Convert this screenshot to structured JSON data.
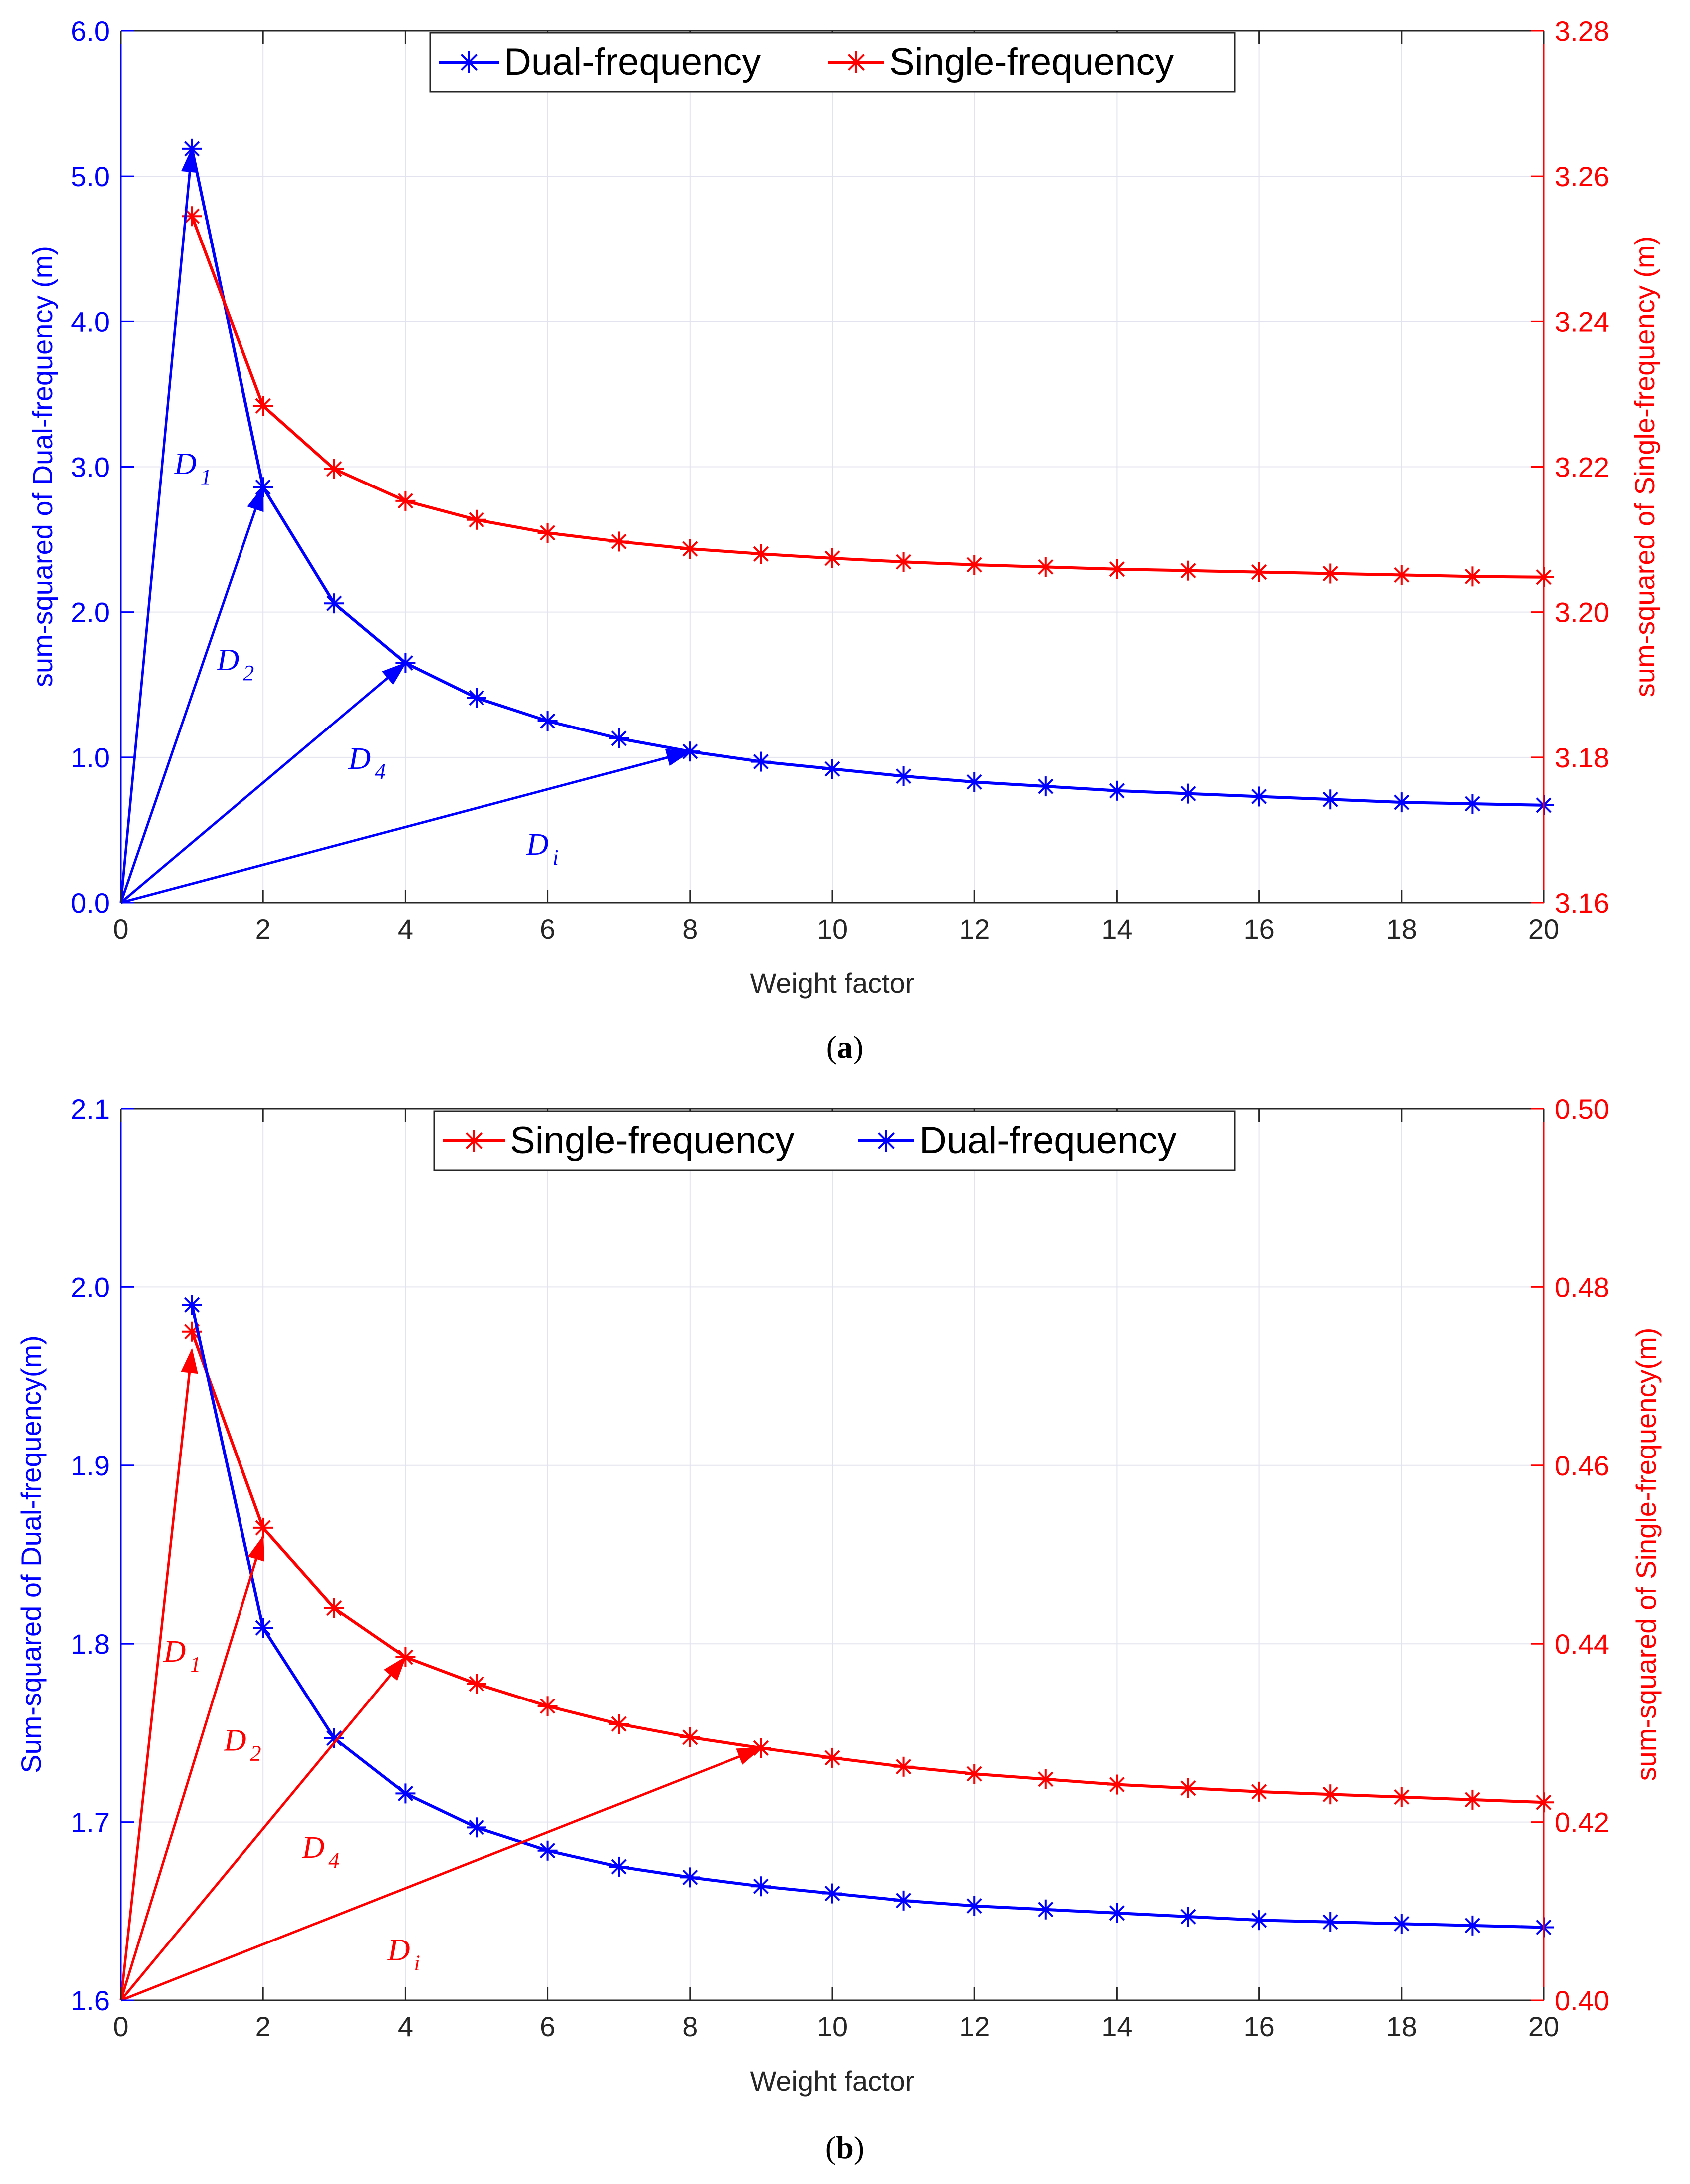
{
  "chart_data": [
    {
      "type": "line",
      "caption": "a",
      "xlabel": "Weight factor",
      "xlim": [
        0,
        20
      ],
      "xticks": [
        0,
        2,
        4,
        6,
        8,
        10,
        12,
        14,
        16,
        18,
        20
      ],
      "xtick_labels": [
        "0",
        "2",
        "4",
        "6",
        "8",
        "10",
        "12",
        "14",
        "16",
        "18",
        "20"
      ],
      "left_axis": {
        "label": "sum-squared of Dual-frequency (m)",
        "color": "#0000ff",
        "ylim": [
          0,
          6
        ],
        "ticks": [
          0,
          1,
          2,
          3,
          4,
          5,
          6
        ],
        "tick_labels": [
          "0.0",
          "1.0",
          "2.0",
          "3.0",
          "4.0",
          "5.0",
          "6.0"
        ]
      },
      "right_axis": {
        "label": "sum-squared of Single-frequency (m)",
        "color": "#ff0000",
        "ylim": [
          3.16,
          3.28
        ],
        "ticks": [
          3.16,
          3.18,
          3.2,
          3.22,
          3.24,
          3.26,
          3.28
        ],
        "tick_labels": [
          "3.16",
          "3.18",
          "3.20",
          "3.22",
          "3.24",
          "3.26",
          "3.28"
        ]
      },
      "legend": {
        "position": "top-center",
        "entries": [
          "Dual-frequency",
          "Single-frequency"
        ]
      },
      "series": [
        {
          "name": "Dual-frequency",
          "axis": "left",
          "color": "#0000ff",
          "x": [
            1,
            2,
            3,
            4,
            5,
            6,
            7,
            8,
            9,
            10,
            11,
            12,
            13,
            14,
            15,
            16,
            17,
            18,
            19,
            20
          ],
          "values": [
            5.19,
            2.86,
            2.06,
            1.65,
            1.41,
            1.25,
            1.13,
            1.04,
            0.97,
            0.92,
            0.87,
            0.83,
            0.8,
            0.77,
            0.75,
            0.73,
            0.71,
            0.69,
            0.68,
            0.67
          ]
        },
        {
          "name": "Single-frequency",
          "axis": "right",
          "color": "#ff0000",
          "x": [
            1,
            2,
            3,
            4,
            5,
            6,
            7,
            8,
            9,
            10,
            11,
            12,
            13,
            14,
            15,
            16,
            17,
            18,
            19,
            20
          ],
          "values": [
            3.2545,
            3.2284,
            3.2197,
            3.2153,
            3.2127,
            3.2109,
            3.2097,
            3.2087,
            3.208,
            3.2074,
            3.2069,
            3.2065,
            3.2062,
            3.2059,
            3.2057,
            3.2055,
            3.2053,
            3.2051,
            3.2049,
            3.2048
          ]
        }
      ],
      "annotations": {
        "axis": "left",
        "color": "#0000ff",
        "origin": [
          0,
          0
        ],
        "arrows": [
          {
            "label": "D",
            "sub": "1",
            "to": [
              1,
              5.19
            ],
            "label_at": [
              0.75,
              2.95
            ]
          },
          {
            "label": "D",
            "sub": "2",
            "to": [
              2,
              2.86
            ],
            "label_at": [
              1.35,
              1.6
            ]
          },
          {
            "label": "D",
            "sub": "4",
            "to": [
              4,
              1.65
            ],
            "label_at": [
              3.2,
              0.92
            ]
          },
          {
            "label": "D",
            "sub": "i",
            "to": [
              8,
              1.04
            ],
            "label_at": [
              5.7,
              0.33
            ]
          }
        ]
      }
    },
    {
      "type": "line",
      "caption": "b",
      "xlabel": "Weight factor",
      "xlim": [
        0,
        20
      ],
      "xticks": [
        0,
        2,
        4,
        6,
        8,
        10,
        12,
        14,
        16,
        18,
        20
      ],
      "xtick_labels": [
        "0",
        "2",
        "4",
        "6",
        "8",
        "10",
        "12",
        "14",
        "16",
        "18",
        "20"
      ],
      "left_axis": {
        "label": "Sum-squared of Dual-frequency(m)",
        "color": "#0000ff",
        "ylim": [
          1.6,
          2.1
        ],
        "ticks": [
          1.6,
          1.7,
          1.8,
          1.9,
          2.0,
          2.1
        ],
        "tick_labels": [
          "1.6",
          "1.7",
          "1.8",
          "1.9",
          "2.0",
          "2.1"
        ]
      },
      "right_axis": {
        "label": "sum-squared of Single-frequency(m)",
        "color": "#ff0000",
        "ylim": [
          0.4,
          0.5
        ],
        "ticks": [
          0.4,
          0.42,
          0.44,
          0.46,
          0.48,
          0.5
        ],
        "tick_labels": [
          "0.40",
          "0.42",
          "0.44",
          "0.46",
          "0.48",
          "0.50"
        ]
      },
      "legend": {
        "position": "top-center",
        "entries": [
          "Single-frequency",
          "Dual-frequency"
        ]
      },
      "series": [
        {
          "name": "Single-frequency",
          "axis": "right",
          "color": "#ff0000",
          "x": [
            1,
            2,
            3,
            4,
            5,
            6,
            7,
            8,
            9,
            10,
            11,
            12,
            13,
            14,
            15,
            16,
            17,
            18,
            19,
            20
          ],
          "values": [
            0.475,
            0.453,
            0.444,
            0.4385,
            0.4355,
            0.433,
            0.431,
            0.4295,
            0.4283,
            0.4272,
            0.4262,
            0.4254,
            0.4248,
            0.4242,
            0.4238,
            0.4234,
            0.4231,
            0.4228,
            0.4225,
            0.4222
          ]
        },
        {
          "name": "Dual-frequency",
          "axis": "left",
          "color": "#0000ff",
          "x": [
            1,
            2,
            3,
            4,
            5,
            6,
            7,
            8,
            9,
            10,
            11,
            12,
            13,
            14,
            15,
            16,
            17,
            18,
            19,
            20
          ],
          "values": [
            1.99,
            1.809,
            1.747,
            1.716,
            1.697,
            1.684,
            1.675,
            1.669,
            1.664,
            1.66,
            1.656,
            1.653,
            1.651,
            1.649,
            1.647,
            1.645,
            1.644,
            1.643,
            1.642,
            1.641
          ]
        }
      ],
      "annotations": {
        "axis": "right",
        "color": "#ff0000",
        "origin": [
          0,
          0.4
        ],
        "arrows": [
          {
            "label": "D",
            "sub": "1",
            "to": [
              1,
              0.473
            ],
            "label_at": [
              0.6,
              0.438
            ]
          },
          {
            "label": "D",
            "sub": "2",
            "to": [
              2,
              0.452
            ],
            "label_at": [
              1.45,
              0.428
            ]
          },
          {
            "label": "D",
            "sub": "4",
            "to": [
              4,
              0.4385
            ],
            "label_at": [
              2.55,
              0.416
            ]
          },
          {
            "label": "D",
            "sub": "i",
            "to": [
              9,
              0.4283
            ],
            "label_at": [
              3.75,
              0.4045
            ]
          }
        ]
      }
    }
  ]
}
